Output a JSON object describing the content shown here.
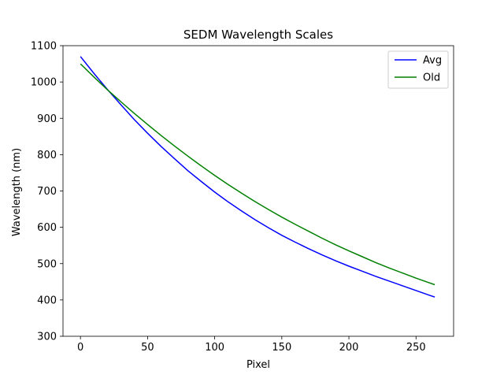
{
  "chart_data": {
    "type": "line",
    "title": "SEDM Wavelength Scales",
    "xlabel": "Pixel",
    "ylabel": "Wavelength (nm)",
    "xlim": [
      -13,
      278
    ],
    "ylim": [
      300,
      1100
    ],
    "xticks": [
      0,
      50,
      100,
      150,
      200,
      250
    ],
    "yticks": [
      300,
      400,
      500,
      600,
      700,
      800,
      900,
      1000,
      1100
    ],
    "grid": false,
    "legend_position": "upper right",
    "series": [
      {
        "name": "Avg",
        "color": "#0000ff",
        "x": [
          0,
          10,
          20,
          30,
          40,
          50,
          60,
          70,
          80,
          90,
          100,
          110,
          120,
          130,
          140,
          150,
          160,
          170,
          180,
          190,
          200,
          210,
          220,
          230,
          240,
          250,
          260,
          264
        ],
        "y": [
          1070,
          1024,
          980,
          938,
          897,
          859,
          823,
          789,
          756,
          726,
          697,
          670,
          645,
          621,
          599,
          578,
          559,
          541,
          524,
          508,
          493,
          479,
          465,
          452,
          439,
          426,
          413,
          408
        ]
      },
      {
        "name": "Old",
        "color": "#008000",
        "x": [
          0,
          10,
          20,
          30,
          40,
          50,
          60,
          70,
          80,
          90,
          100,
          110,
          120,
          130,
          140,
          150,
          160,
          170,
          180,
          190,
          200,
          210,
          220,
          230,
          240,
          250,
          260,
          264
        ],
        "y": [
          1050,
          1014,
          979,
          946,
          914,
          883,
          853,
          824,
          796,
          769,
          743,
          718,
          694,
          671,
          649,
          628,
          608,
          589,
          570,
          552,
          535,
          519,
          503,
          488,
          474,
          460,
          447,
          442
        ]
      }
    ]
  }
}
